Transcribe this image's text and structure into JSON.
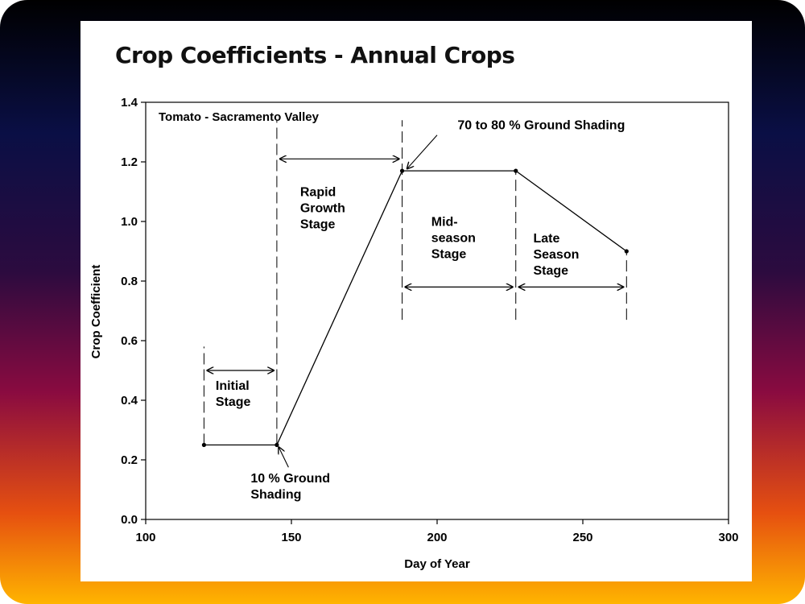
{
  "slide": {
    "title": "Crop Coefficients - Annual Crops"
  },
  "chart_data": {
    "type": "line",
    "title": "",
    "inset_label": "Tomato - Sacramento Valley",
    "xlabel": "Day of Year",
    "ylabel": "Crop Coefficient",
    "xlim": [
      100,
      300
    ],
    "ylim": [
      0.0,
      1.4
    ],
    "x_ticks": [
      100,
      150,
      200,
      250,
      300
    ],
    "y_ticks": [
      0.0,
      0.2,
      0.4,
      0.6,
      0.8,
      1.0,
      1.2,
      1.4
    ],
    "x_tick_labels": [
      "100",
      "150",
      "200",
      "250",
      "300"
    ],
    "y_tick_labels": [
      "0.0",
      "0.2",
      "0.4",
      "0.6",
      "0.8",
      "1.0",
      "1.2",
      "1.4"
    ],
    "grid": false,
    "legend": "none",
    "series": [
      {
        "x": [
          120,
          145,
          188,
          227,
          265
        ],
        "y": [
          0.25,
          0.25,
          1.17,
          1.17,
          0.9
        ]
      }
    ],
    "stage_boundaries": [
      {
        "x": 120,
        "y_from": 0.25,
        "y_to": 0.58
      },
      {
        "x": 145,
        "y_from": 0.25,
        "y_to": 1.34
      },
      {
        "x": 188,
        "y_from": 0.67,
        "y_to": 1.34
      },
      {
        "x": 227,
        "y_from": 0.67,
        "y_to": 1.17
      },
      {
        "x": 265,
        "y_from": 0.67,
        "y_to": 0.9
      }
    ],
    "stage_arrows": [
      {
        "x1": 120,
        "x2": 145,
        "y": 0.5
      },
      {
        "x1": 145,
        "x2": 188,
        "y": 1.21
      },
      {
        "x1": 188,
        "x2": 227,
        "y": 0.78
      },
      {
        "x1": 227,
        "x2": 265,
        "y": 0.78
      }
    ],
    "annotations": [
      {
        "lines": [
          "Initial",
          "Stage"
        ],
        "x": 124,
        "y": 0.435
      },
      {
        "lines": [
          "Rapid",
          "Growth",
          "Stage"
        ],
        "x": 153,
        "y": 1.085
      },
      {
        "lines": [
          "Mid-",
          "season",
          "Stage"
        ],
        "x": 198,
        "y": 0.985
      },
      {
        "lines": [
          "Late",
          "Season",
          "Stage"
        ],
        "x": 233,
        "y": 0.93
      },
      {
        "lines": [
          "10 % Ground",
          "Shading"
        ],
        "x": 136,
        "y": 0.125
      },
      {
        "lines": [
          "70 to 80 % Ground Shading"
        ],
        "x": 207,
        "y": 1.31
      }
    ],
    "pointer_arrows": [
      {
        "from": [
          149,
          0.175
        ],
        "to": [
          145,
          0.25
        ]
      },
      {
        "from": [
          200,
          1.29
        ],
        "to": [
          189,
          1.17
        ]
      }
    ]
  }
}
